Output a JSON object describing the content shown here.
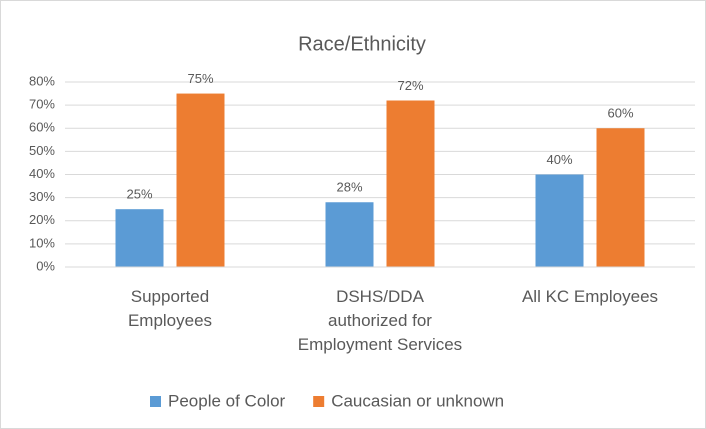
{
  "chart_data": {
    "type": "bar",
    "title": "Race/Ethnicity",
    "categories": [
      "Supported\nEmployees",
      "DSHS/DDA\nauthorized for\nEmployment Services",
      "All KC Employees"
    ],
    "series": [
      {
        "name": "People of Color",
        "color": "#5b9bd5",
        "values": [
          25,
          28,
          40
        ],
        "value_labels": [
          "25%",
          "28%",
          "40%"
        ]
      },
      {
        "name": "Caucasian or unknown",
        "color": "#ed7d31",
        "values": [
          75,
          72,
          60
        ],
        "value_labels": [
          "75%",
          "72%",
          "60%"
        ]
      }
    ],
    "ylim": [
      0,
      80
    ],
    "yticks": [
      {
        "value": 0,
        "label": "0%"
      },
      {
        "value": 10,
        "label": "10%"
      },
      {
        "value": 20,
        "label": "20%"
      },
      {
        "value": 30,
        "label": "30%"
      },
      {
        "value": 40,
        "label": "40%"
      },
      {
        "value": 50,
        "label": "50%"
      },
      {
        "value": 60,
        "label": "60%"
      },
      {
        "value": 70,
        "label": "70%"
      },
      {
        "value": 80,
        "label": "80%"
      }
    ],
    "grid": true,
    "legend": "bottom"
  }
}
